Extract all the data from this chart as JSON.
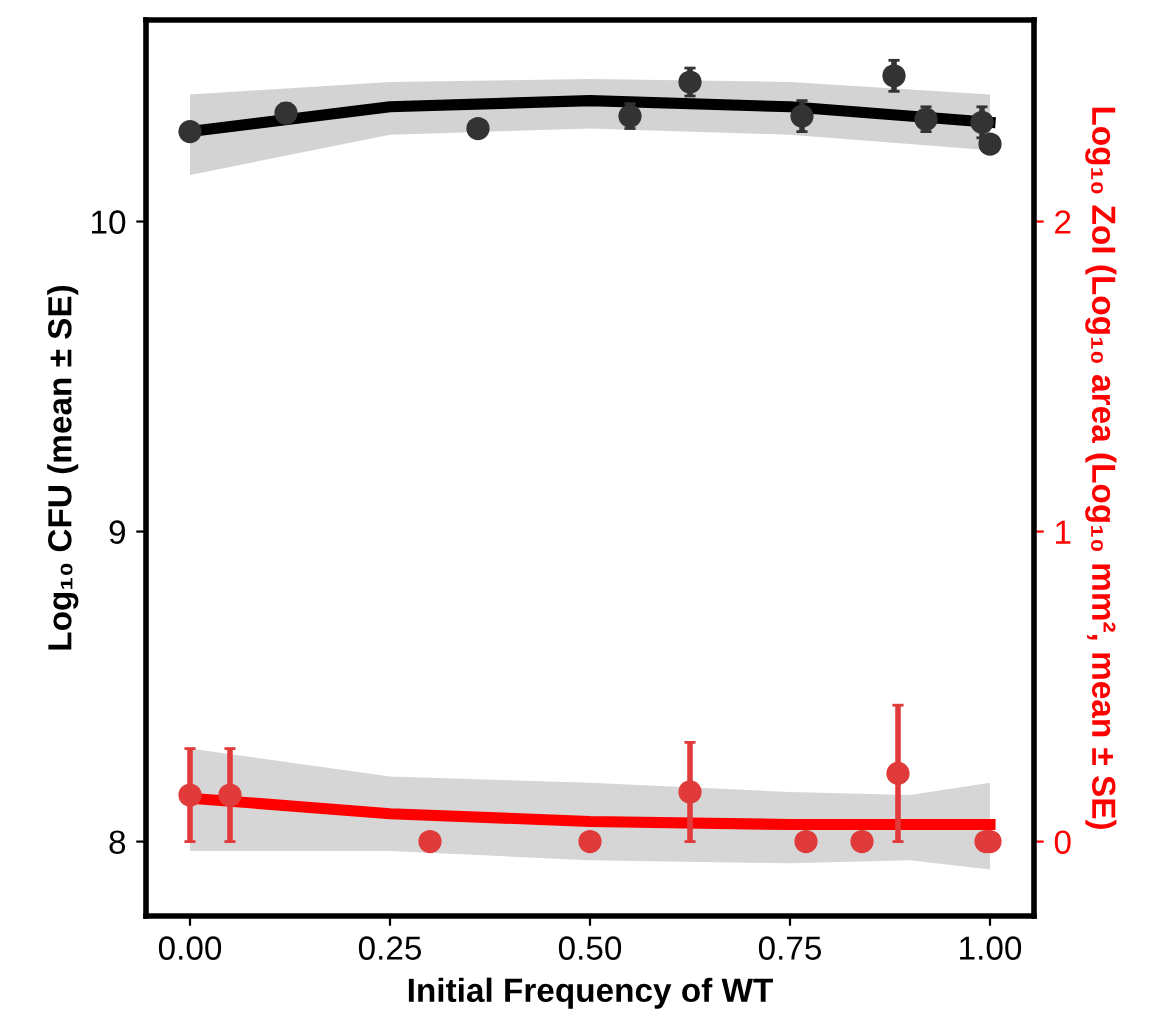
{
  "chart_data": {
    "type": "scatter",
    "xlabel": "Initial Frequency of WT",
    "ylabel": "Log₁₀ CFU (mean ± SE)",
    "y2label": "Log₁₀ ZoI (Log₁₀ area (Log₁₀ mm², mean ± SE)",
    "xlim": [
      -0.055,
      1.055
    ],
    "xticks": [
      {
        "value": 0,
        "label": "0.00"
      },
      {
        "value": 0.25,
        "label": "0.25"
      },
      {
        "value": 0.5,
        "label": "0.50"
      },
      {
        "value": 0.75,
        "label": "0.75"
      },
      {
        "value": 1,
        "label": "1.00"
      }
    ],
    "ylim": [
      7.76,
      10.65
    ],
    "yticks": [
      8,
      9,
      10
    ],
    "y2lim": [
      -0.24,
      2.65
    ],
    "y2ticks": [
      0,
      1,
      2
    ],
    "grid": false,
    "legend": false,
    "series": [
      {
        "axis": "y",
        "color": "#333333",
        "marker": "circle",
        "x": [
          0.0,
          0.12,
          0.36,
          0.55,
          0.625,
          0.765,
          0.88,
          0.92,
          0.99,
          1.0
        ],
        "values": [
          10.29,
          10.35,
          10.3,
          10.34,
          10.45,
          10.34,
          10.47,
          10.33,
          10.32,
          10.25
        ],
        "errors": [
          0.01,
          0.03,
          0.01,
          0.04,
          0.045,
          0.05,
          0.05,
          0.04,
          0.05,
          0.02
        ]
      },
      {
        "type": "line",
        "axis": "y",
        "color": "#000000",
        "marker": "none",
        "x": [
          0,
          0.25,
          0.5,
          0.75,
          1.0
        ],
        "values": [
          10.29,
          10.37,
          10.39,
          10.37,
          10.32
        ],
        "lower": [
          10.15,
          10.28,
          10.3,
          10.28,
          10.23
        ],
        "upper": [
          10.41,
          10.45,
          10.46,
          10.45,
          10.41
        ]
      },
      {
        "axis": "y2",
        "color": "#e03a3a",
        "marker": "circle",
        "x": [
          0.0,
          0.05,
          0.3,
          0.5,
          0.625,
          0.77,
          0.84,
          0.885,
          0.995,
          1.0
        ],
        "values": [
          0.15,
          0.15,
          0,
          0,
          0.16,
          0,
          0,
          0.22,
          0,
          0
        ],
        "errors": [
          0.15,
          0.15,
          null,
          null,
          0.16,
          null,
          null,
          0.22,
          null,
          null
        ]
      },
      {
        "type": "line",
        "axis": "y2",
        "color": "#ff0000",
        "marker": "none",
        "x": [
          0,
          0.25,
          0.5,
          0.75,
          0.9,
          1.0
        ],
        "values": [
          0.14,
          0.09,
          0.065,
          0.055,
          0.055,
          0.055
        ],
        "lower": [
          -0.03,
          -0.03,
          -0.06,
          -0.07,
          -0.06,
          -0.09
        ],
        "upper": [
          0.3,
          0.21,
          0.19,
          0.16,
          0.15,
          0.19
        ]
      }
    ]
  }
}
